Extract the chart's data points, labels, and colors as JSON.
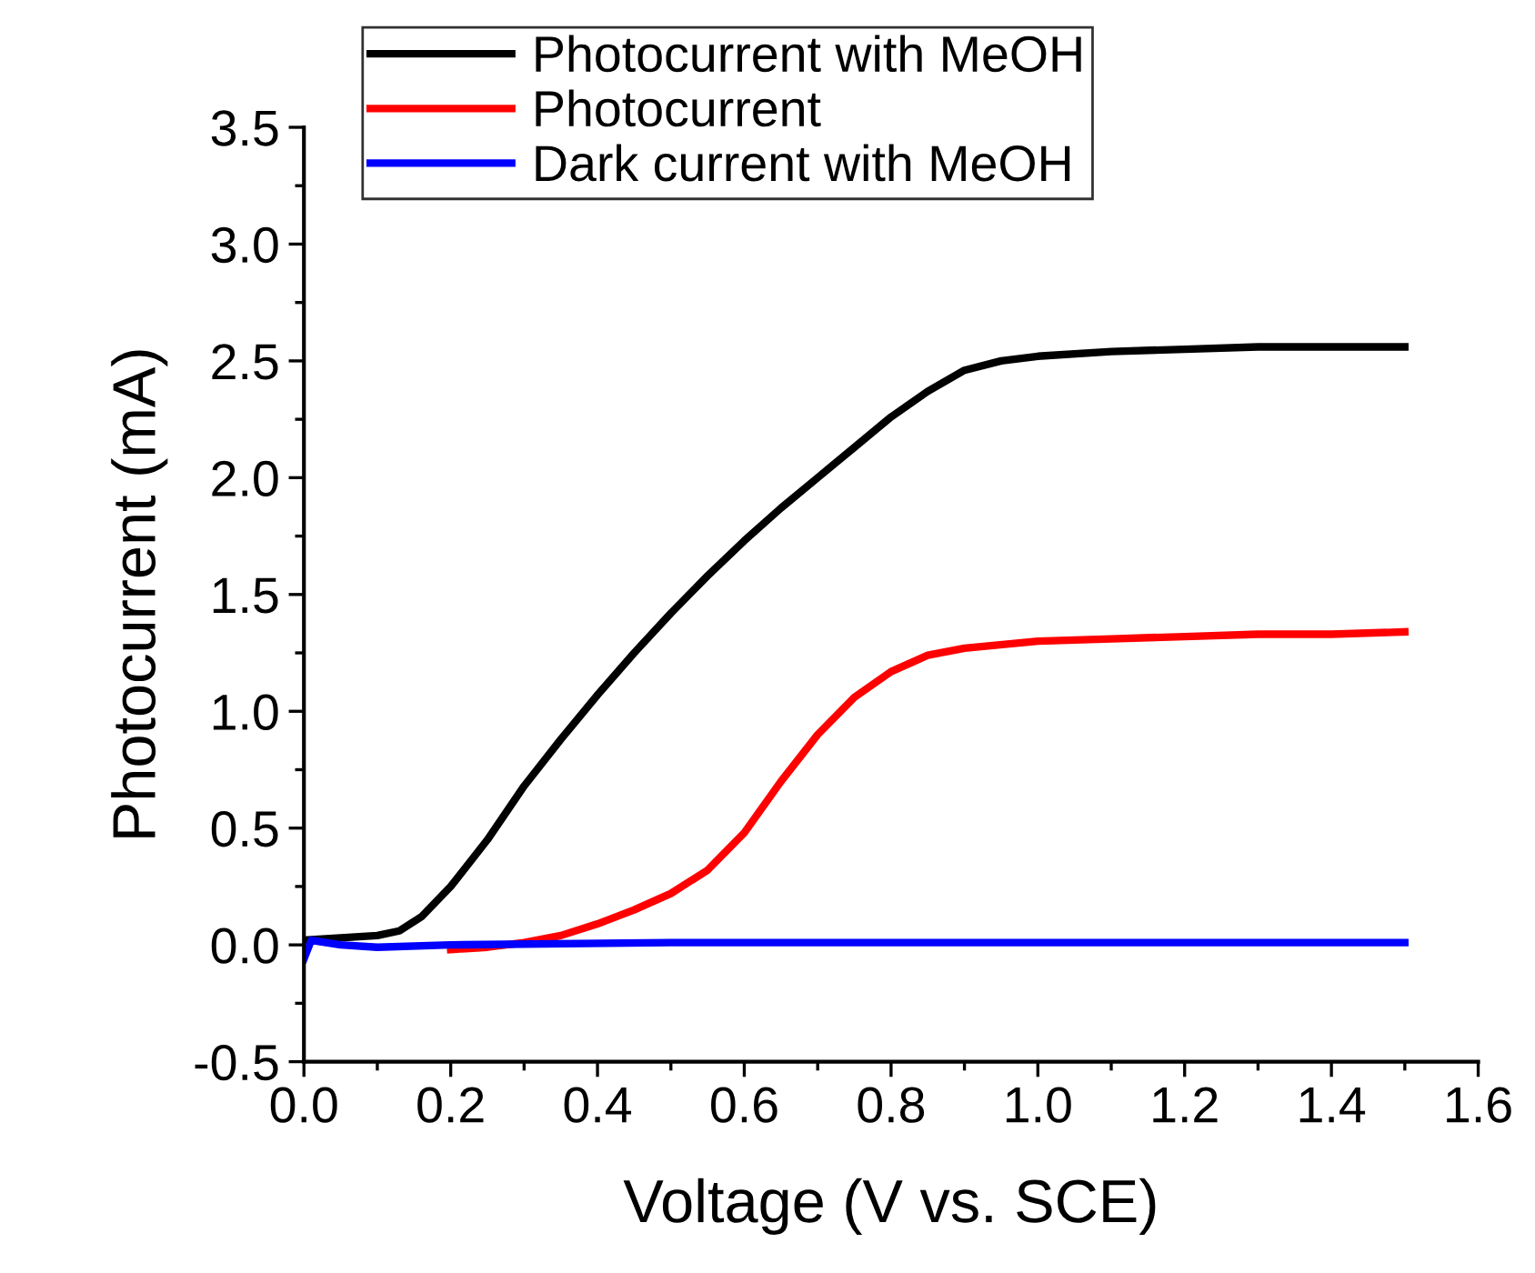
{
  "chart_data": {
    "type": "line",
    "xlabel": "Voltage (V vs. SCE)",
    "ylabel": "Photocurrent (mA)",
    "xlim": [
      0.0,
      1.6
    ],
    "ylim": [
      -0.5,
      3.5
    ],
    "xticks": [
      {
        "value": 0.0,
        "label": "0.0"
      },
      0.2,
      0.4,
      0.6,
      0.8,
      {
        "value": 1.0,
        "label": "1.0"
      },
      1.2,
      1.4,
      1.6
    ],
    "yticks": [
      {
        "value": -0.5,
        "label": "-0.5"
      },
      {
        "value": 0.0,
        "label": "0.0"
      },
      0.5,
      {
        "value": 1.0,
        "label": "1.0"
      },
      1.5,
      {
        "value": 2.0,
        "label": "2.0"
      },
      2.5,
      {
        "value": 3.0,
        "label": "3.0"
      },
      3.5
    ],
    "legend": "top left",
    "grid": false,
    "marker": "none",
    "line_style": "solid",
    "series": [
      {
        "name": "Photocurrent with MeOH",
        "color": "#000000",
        "x": [
          0.0,
          0.05,
          0.1,
          0.13,
          0.16,
          0.2,
          0.25,
          0.3,
          0.35,
          0.4,
          0.45,
          0.5,
          0.55,
          0.6,
          0.65,
          0.7,
          0.75,
          0.8,
          0.85,
          0.9,
          0.95,
          1.0,
          1.1,
          1.2,
          1.3,
          1.4,
          1.5
        ],
        "values": [
          0.02,
          0.03,
          0.04,
          0.06,
          0.12,
          0.25,
          0.45,
          0.68,
          0.88,
          1.07,
          1.25,
          1.42,
          1.58,
          1.73,
          1.87,
          2.0,
          2.13,
          2.26,
          2.37,
          2.46,
          2.5,
          2.52,
          2.54,
          2.55,
          2.56,
          2.56,
          2.56
        ]
      },
      {
        "name": "Photocurrent",
        "color": "#ff0000",
        "x": [
          0.2,
          0.25,
          0.3,
          0.35,
          0.4,
          0.45,
          0.5,
          0.55,
          0.6,
          0.65,
          0.7,
          0.75,
          0.8,
          0.85,
          0.9,
          1.0,
          1.1,
          1.2,
          1.3,
          1.4,
          1.5
        ],
        "values": [
          -0.02,
          -0.01,
          0.01,
          0.04,
          0.09,
          0.15,
          0.22,
          0.32,
          0.48,
          0.7,
          0.9,
          1.06,
          1.17,
          1.24,
          1.27,
          1.3,
          1.31,
          1.32,
          1.33,
          1.33,
          1.34
        ]
      },
      {
        "name": "Dark current with MeOH",
        "color": "#0000ff",
        "x": [
          0.0,
          0.01,
          0.05,
          0.1,
          0.2,
          0.5,
          1.0,
          1.5
        ],
        "values": [
          -0.06,
          0.02,
          0.0,
          -0.01,
          0.0,
          0.01,
          0.01,
          0.01
        ]
      }
    ]
  }
}
